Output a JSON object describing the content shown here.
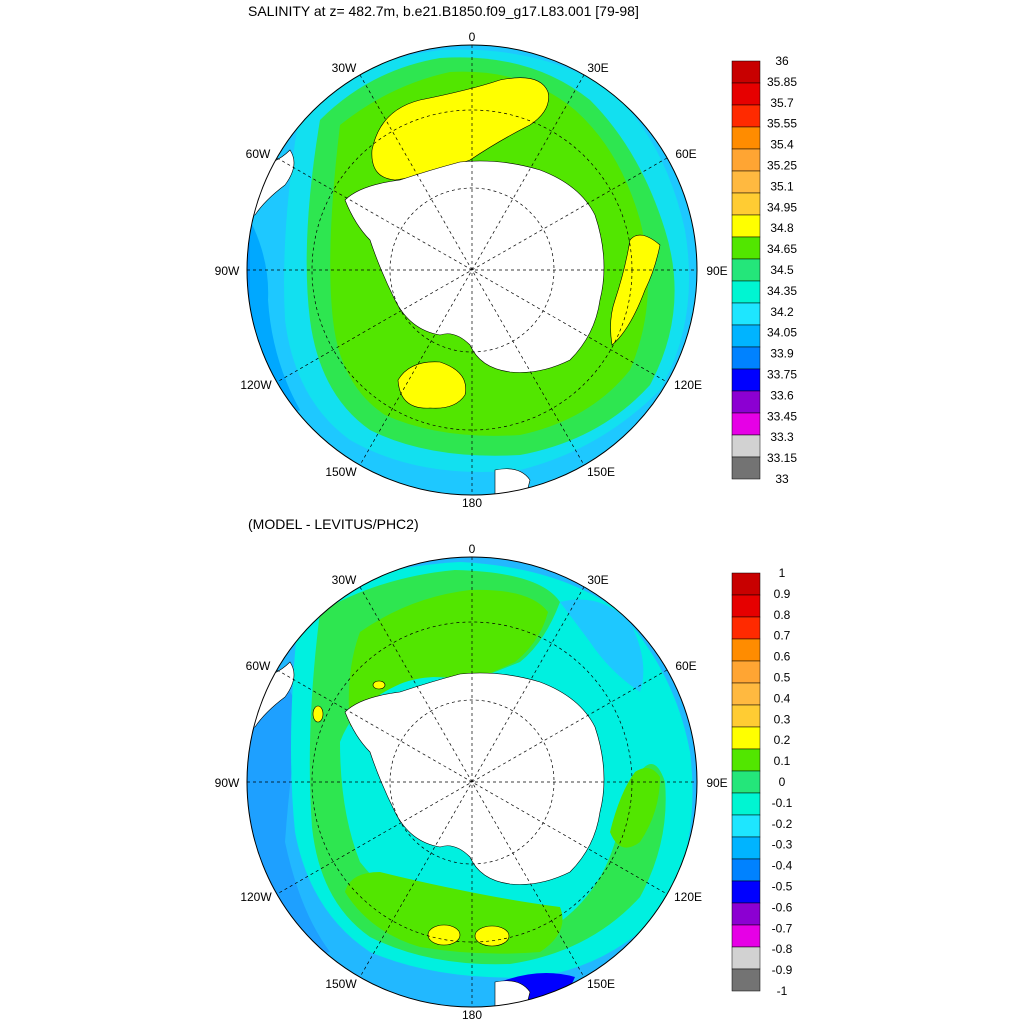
{
  "figure": {
    "top_title": "SALINITY at z= 482.7m, b.e21.B1850.f09_g17.L83.001 [79-98]",
    "bottom_title": "(MODEL - LEVITUS/PHC2)"
  },
  "map_labels": {
    "lon_0": "0",
    "lon_30e": "30E",
    "lon_60e": "60E",
    "lon_90e": "90E",
    "lon_120e": "120E",
    "lon_150e": "150E",
    "lon_180": "180",
    "lon_150w": "150W",
    "lon_120w": "120W",
    "lon_90w": "90W",
    "lon_60w": "60W",
    "lon_30w": "30W"
  },
  "colorbar_top": {
    "labels": [
      "36",
      "35.85",
      "35.7",
      "35.55",
      "35.4",
      "35.25",
      "35.1",
      "34.95",
      "34.8",
      "34.65",
      "34.5",
      "34.35",
      "34.2",
      "34.05",
      "33.9",
      "33.75",
      "33.6",
      "33.45",
      "33.3",
      "33.15",
      "33"
    ],
    "colors": [
      "#c80000",
      "#e60000",
      "#ff2a00",
      "#ff8c00",
      "#ffa533",
      "#ffb940",
      "#ffcc33",
      "#ffff00",
      "#52e600",
      "#24e67a",
      "#00f5d2",
      "#1ee6ff",
      "#00b4ff",
      "#0082ff",
      "#0000ff",
      "#8c00d2",
      "#e600e6",
      "#d2d2d2",
      "#737373"
    ]
  },
  "colorbar_bottom": {
    "labels": [
      "1",
      "0.9",
      "0.8",
      "0.7",
      "0.6",
      "0.5",
      "0.4",
      "0.3",
      "0.2",
      "0.1",
      "0",
      "-0.1",
      "-0.2",
      "-0.3",
      "-0.4",
      "-0.5",
      "-0.6",
      "-0.7",
      "-0.8",
      "-0.9",
      "-1"
    ],
    "colors": [
      "#c80000",
      "#e60000",
      "#ff2a00",
      "#ff8c00",
      "#ffa533",
      "#ffb940",
      "#ffcc33",
      "#ffff00",
      "#52e600",
      "#24e67a",
      "#00f5d2",
      "#1ee6ff",
      "#00b4ff",
      "#0082ff",
      "#0000ff",
      "#8c00d2",
      "#e600e6",
      "#d2d2d2",
      "#737373"
    ]
  },
  "colors": {
    "land": "#ffffff",
    "ocean_outer": "#22b8ff",
    "ocean_edge": "#28d2ff",
    "fill_green": "#52e600",
    "fill_bright_green": "#2ee650",
    "fill_yellow": "#ffff00",
    "fill_cyan": "#00f0e0",
    "fill_blue": "#0070ff"
  }
}
